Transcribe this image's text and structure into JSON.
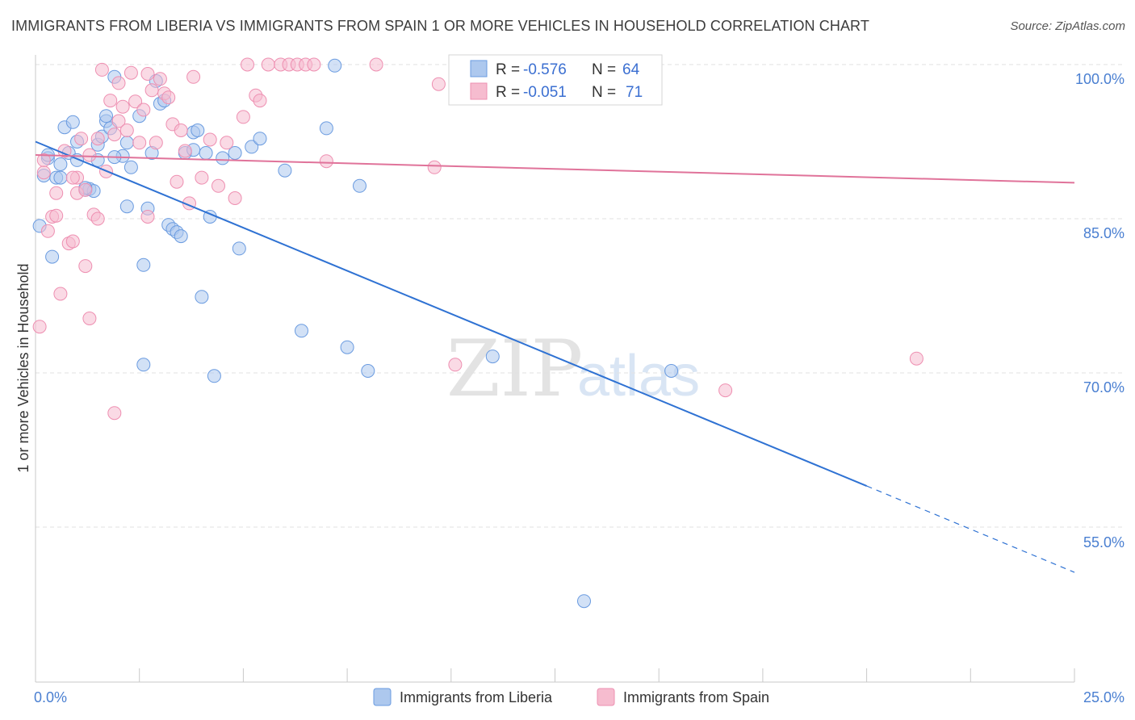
{
  "title": "IMMIGRANTS FROM LIBERIA VS IMMIGRANTS FROM SPAIN 1 OR MORE VEHICLES IN HOUSEHOLD CORRELATION CHART",
  "source": "Source: ZipAtlas.com",
  "watermark": {
    "zip": "ZIP",
    "atlas": "atlas"
  },
  "legend": {
    "r_label": "R =",
    "n_label": "N =",
    "entries": [
      {
        "r": "-0.576",
        "n": "64"
      },
      {
        "r": "-0.051",
        "n": "71"
      }
    ]
  },
  "colors": {
    "liberia": "#6a9be0",
    "liberia_fill": "#adc8ee",
    "liberia_line": "#2f72d3",
    "spain": "#ee8fb1",
    "spain_fill": "#f6bccf",
    "spain_line": "#e0739a",
    "axis_text": "#4a7fd1",
    "grid": "#e2e2e2"
  },
  "chart_data": {
    "type": "scatter",
    "title": "IMMIGRANTS FROM LIBERIA VS IMMIGRANTS FROM SPAIN 1 OR MORE VEHICLES IN HOUSEHOLD CORRELATION CHART",
    "xlabel": "",
    "ylabel": "1 or more Vehicles in Household",
    "xlim": [
      0,
      25
    ],
    "ylim": [
      40,
      101
    ],
    "x_tick_labels": [
      "0.0%",
      "25.0%"
    ],
    "y_ticks": [
      55,
      70,
      85,
      100
    ],
    "y_tick_labels": [
      "55.0%",
      "70.0%",
      "85.0%",
      "100.0%"
    ],
    "grid": true,
    "legend_position": "top-center",
    "series": [
      {
        "name": "Immigrants from Liberia",
        "r": -0.576,
        "n": 64,
        "trend": {
          "x0": 0,
          "y0": 92.5,
          "x1": 20,
          "y1": 59.0,
          "dash_to_x": 25,
          "dash_to_y": 50.6
        },
        "points": [
          [
            0.1,
            84.3
          ],
          [
            0.2,
            89.2
          ],
          [
            0.3,
            90.9
          ],
          [
            0.4,
            81.3
          ],
          [
            0.5,
            89.0
          ],
          [
            0.6,
            90.3
          ],
          [
            0.7,
            93.9
          ],
          [
            0.8,
            91.4
          ],
          [
            0.9,
            94.4
          ],
          [
            1.0,
            90.7
          ],
          [
            1.0,
            92.5
          ],
          [
            1.2,
            87.8
          ],
          [
            1.3,
            87.9
          ],
          [
            1.4,
            87.7
          ],
          [
            1.5,
            90.7
          ],
          [
            1.5,
            92.2
          ],
          [
            1.6,
            93.0
          ],
          [
            1.7,
            94.5
          ],
          [
            1.8,
            93.8
          ],
          [
            1.9,
            98.8
          ],
          [
            2.1,
            91.1
          ],
          [
            2.2,
            92.4
          ],
          [
            2.2,
            86.2
          ],
          [
            2.3,
            90.0
          ],
          [
            2.5,
            95.0
          ],
          [
            2.6,
            80.5
          ],
          [
            2.7,
            86.0
          ],
          [
            2.8,
            91.4
          ],
          [
            2.9,
            98.4
          ],
          [
            3.0,
            96.2
          ],
          [
            3.1,
            96.5
          ],
          [
            3.2,
            84.4
          ],
          [
            3.3,
            84.0
          ],
          [
            3.4,
            83.7
          ],
          [
            3.5,
            83.3
          ],
          [
            3.6,
            91.4
          ],
          [
            3.8,
            91.7
          ],
          [
            3.8,
            93.4
          ],
          [
            3.9,
            93.6
          ],
          [
            4.0,
            77.4
          ],
          [
            4.1,
            91.4
          ],
          [
            4.2,
            85.2
          ],
          [
            4.3,
            69.7
          ],
          [
            4.5,
            90.9
          ],
          [
            4.8,
            91.4
          ],
          [
            4.9,
            82.1
          ],
          [
            5.2,
            92.0
          ],
          [
            5.4,
            92.8
          ],
          [
            6.0,
            89.7
          ],
          [
            6.4,
            74.1
          ],
          [
            7.0,
            93.8
          ],
          [
            7.2,
            99.9
          ],
          [
            7.5,
            72.5
          ],
          [
            7.8,
            88.2
          ],
          [
            8.0,
            70.2
          ],
          [
            11.0,
            71.6
          ],
          [
            13.2,
            47.8
          ],
          [
            15.3,
            70.2
          ],
          [
            2.6,
            70.8
          ],
          [
            1.2,
            88.0
          ],
          [
            0.6,
            89.0
          ],
          [
            1.9,
            91.0
          ],
          [
            0.3,
            91.2
          ],
          [
            1.7,
            95.0
          ]
        ]
      },
      {
        "name": "Immigrants from Spain",
        "r": -0.051,
        "n": 71,
        "trend": {
          "x0": 0,
          "y0": 91.2,
          "x1": 25,
          "y1": 88.5
        },
        "points": [
          [
            0.1,
            74.5
          ],
          [
            0.2,
            89.5
          ],
          [
            0.3,
            83.8
          ],
          [
            0.4,
            85.2
          ],
          [
            0.5,
            85.3
          ],
          [
            0.6,
            77.7
          ],
          [
            0.7,
            91.6
          ],
          [
            0.8,
            82.6
          ],
          [
            0.9,
            82.8
          ],
          [
            1.0,
            87.5
          ],
          [
            1.0,
            89.0
          ],
          [
            1.1,
            92.8
          ],
          [
            1.2,
            80.4
          ],
          [
            1.2,
            87.8
          ],
          [
            1.3,
            91.2
          ],
          [
            1.3,
            75.3
          ],
          [
            1.4,
            85.4
          ],
          [
            1.5,
            92.8
          ],
          [
            1.6,
            99.5
          ],
          [
            1.7,
            89.6
          ],
          [
            1.8,
            96.5
          ],
          [
            1.9,
            93.2
          ],
          [
            2.0,
            94.5
          ],
          [
            2.0,
            98.2
          ],
          [
            2.1,
            95.9
          ],
          [
            2.2,
            93.6
          ],
          [
            2.3,
            99.2
          ],
          [
            2.4,
            96.4
          ],
          [
            2.5,
            92.4
          ],
          [
            2.6,
            95.6
          ],
          [
            2.7,
            99.1
          ],
          [
            2.8,
            97.5
          ],
          [
            2.9,
            92.4
          ],
          [
            3.0,
            98.6
          ],
          [
            3.1,
            97.2
          ],
          [
            3.2,
            96.8
          ],
          [
            3.3,
            94.2
          ],
          [
            3.4,
            88.6
          ],
          [
            3.5,
            93.6
          ],
          [
            3.6,
            91.6
          ],
          [
            3.7,
            86.5
          ],
          [
            3.8,
            98.8
          ],
          [
            4.0,
            89.0
          ],
          [
            4.2,
            92.7
          ],
          [
            4.4,
            88.2
          ],
          [
            4.6,
            92.4
          ],
          [
            4.8,
            87.0
          ],
          [
            5.0,
            94.9
          ],
          [
            5.1,
            100.0
          ],
          [
            5.3,
            97.0
          ],
          [
            5.4,
            96.5
          ],
          [
            5.6,
            100.0
          ],
          [
            5.9,
            100.0
          ],
          [
            6.1,
            100.0
          ],
          [
            6.3,
            100.0
          ],
          [
            6.5,
            100.0
          ],
          [
            6.7,
            100.0
          ],
          [
            7.0,
            90.6
          ],
          [
            8.2,
            100.0
          ],
          [
            9.6,
            90.0
          ],
          [
            9.7,
            98.1
          ],
          [
            10.1,
            70.8
          ],
          [
            11.0,
            97.0
          ],
          [
            16.6,
            68.3
          ],
          [
            21.2,
            71.4
          ],
          [
            1.9,
            66.1
          ],
          [
            0.5,
            87.5
          ],
          [
            0.9,
            89.0
          ],
          [
            2.7,
            85.2
          ],
          [
            0.2,
            90.7
          ],
          [
            1.5,
            85.0
          ]
        ]
      }
    ]
  },
  "axis": {
    "y_label": "1 or more Vehicles in Household",
    "x_min_label": "0.0%",
    "x_max_label": "25.0%",
    "y_tick_labels": [
      "100.0%",
      "85.0%",
      "70.0%",
      "55.0%"
    ]
  },
  "bottom_legend": [
    {
      "label": "Immigrants from Liberia"
    },
    {
      "label": "Immigrants from Spain"
    }
  ]
}
